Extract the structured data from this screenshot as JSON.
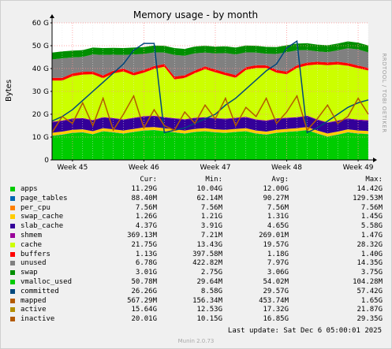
{
  "chart_data": {
    "type": "area",
    "title": "Memory usage - by month",
    "ylabel": "Bytes",
    "xlabel": "",
    "side_label": "RRDTOOL / TOBI OETIKER",
    "ylim": [
      0,
      60
    ],
    "y_ticks": [
      "0",
      "10 G",
      "20 G",
      "30 G",
      "40 G",
      "50 G",
      "60 G"
    ],
    "y_tick_values": [
      0,
      10,
      20,
      30,
      40,
      50,
      60
    ],
    "x_range": [
      0,
      31
    ],
    "x_ticks": [
      {
        "label": "Week 45",
        "x": 2
      },
      {
        "label": "Week 46",
        "x": 9
      },
      {
        "label": "Week 47",
        "x": 16
      },
      {
        "label": "Week 48",
        "x": 23
      },
      {
        "label": "Week 49",
        "x": 30
      }
    ],
    "grid": true,
    "x": [
      0,
      1,
      2,
      3,
      4,
      5,
      6,
      7,
      8,
      9,
      10,
      11,
      12,
      13,
      14,
      15,
      16,
      17,
      18,
      19,
      20,
      21,
      22,
      23,
      24,
      25,
      26,
      27,
      28,
      29,
      30,
      31
    ],
    "stack_series": [
      {
        "name": "apps",
        "color": "#00cc00",
        "values": [
          10.5,
          11.0,
          11.8,
          12.0,
          11.2,
          12.5,
          12.0,
          11.5,
          12.2,
          12.8,
          13.0,
          12.5,
          12.0,
          11.5,
          12.2,
          12.5,
          12.0,
          11.8,
          12.2,
          12.5,
          11.5,
          11.0,
          11.8,
          12.2,
          12.5,
          13.0,
          11.5,
          10.2,
          11.0,
          12.0,
          11.5,
          11.3
        ]
      },
      {
        "name": "page_tables",
        "color": "#0066b3",
        "values": [
          0.09,
          0.09,
          0.09,
          0.09,
          0.09,
          0.09,
          0.09,
          0.09,
          0.09,
          0.09,
          0.09,
          0.09,
          0.09,
          0.09,
          0.09,
          0.09,
          0.09,
          0.09,
          0.09,
          0.09,
          0.09,
          0.09,
          0.09,
          0.09,
          0.09,
          0.09,
          0.09,
          0.09,
          0.09,
          0.09,
          0.09,
          0.09
        ]
      },
      {
        "name": "per_cpu",
        "color": "#ff8000",
        "values": [
          0.01,
          0.01,
          0.01,
          0.01,
          0.01,
          0.01,
          0.01,
          0.01,
          0.01,
          0.01,
          0.01,
          0.01,
          0.01,
          0.01,
          0.01,
          0.01,
          0.01,
          0.01,
          0.01,
          0.01,
          0.01,
          0.01,
          0.01,
          0.01,
          0.01,
          0.01,
          0.01,
          0.01,
          0.01,
          0.01,
          0.01,
          0.01
        ]
      },
      {
        "name": "swap_cache",
        "color": "#ffcc00",
        "values": [
          1.3,
          1.3,
          1.3,
          1.3,
          1.3,
          1.3,
          1.3,
          1.3,
          1.3,
          1.3,
          1.3,
          1.3,
          1.3,
          1.3,
          1.3,
          1.3,
          1.3,
          1.3,
          1.3,
          1.3,
          1.3,
          1.3,
          1.3,
          1.3,
          1.3,
          1.3,
          1.3,
          1.3,
          1.3,
          1.3,
          1.3,
          1.26
        ]
      },
      {
        "name": "slab_cache",
        "color": "#330099",
        "values": [
          4.6,
          4.6,
          4.7,
          4.7,
          4.6,
          4.6,
          4.7,
          4.6,
          4.6,
          4.7,
          4.7,
          4.6,
          4.6,
          4.7,
          4.6,
          4.6,
          4.7,
          4.6,
          4.6,
          4.7,
          4.6,
          4.6,
          4.7,
          4.6,
          4.6,
          4.7,
          4.6,
          4.6,
          4.6,
          4.5,
          4.4,
          4.37
        ]
      },
      {
        "name": "shmem",
        "color": "#990099",
        "values": [
          0.27,
          0.27,
          0.27,
          0.27,
          0.27,
          0.27,
          0.27,
          0.27,
          0.27,
          0.27,
          0.27,
          0.27,
          0.27,
          0.27,
          0.27,
          0.27,
          0.27,
          0.27,
          0.27,
          0.27,
          0.27,
          0.27,
          0.27,
          0.27,
          0.27,
          0.27,
          0.27,
          0.27,
          0.27,
          0.3,
          0.35,
          0.37
        ]
      },
      {
        "name": "cache",
        "color": "#ccff00",
        "values": [
          18.0,
          17.5,
          18.5,
          19.0,
          20.0,
          17.0,
          19.5,
          21.0,
          18.5,
          19.0,
          20.5,
          22.0,
          17.0,
          18.0,
          19.5,
          21.0,
          20.0,
          19.0,
          17.5,
          20.5,
          22.5,
          23.0,
          20.0,
          19.0,
          21.5,
          22.0,
          24.0,
          25.0,
          24.5,
          23.0,
          22.5,
          21.75
        ]
      },
      {
        "name": "buffers",
        "color": "#ff0000",
        "values": [
          1.2,
          1.2,
          1.2,
          1.2,
          1.2,
          1.2,
          1.2,
          1.2,
          1.2,
          1.2,
          1.2,
          1.2,
          1.2,
          1.2,
          1.2,
          1.2,
          1.2,
          1.2,
          1.2,
          1.2,
          1.2,
          1.2,
          1.2,
          1.2,
          1.2,
          1.2,
          1.2,
          1.2,
          1.2,
          1.2,
          1.2,
          1.13
        ]
      },
      {
        "name": "unused",
        "color": "#808080",
        "values": [
          8.0,
          8.5,
          7.0,
          6.5,
          7.5,
          9.0,
          7.0,
          6.0,
          8.0,
          7.0,
          6.0,
          5.0,
          9.5,
          8.5,
          7.5,
          6.0,
          7.0,
          8.5,
          9.0,
          6.5,
          5.5,
          5.0,
          7.0,
          8.5,
          6.5,
          5.5,
          4.5,
          4.5,
          5.0,
          6.5,
          7.0,
          6.78
        ]
      },
      {
        "name": "swap",
        "color": "#008f00",
        "values": [
          3.0,
          3.0,
          3.0,
          3.0,
          3.0,
          3.0,
          3.0,
          3.0,
          3.0,
          3.0,
          3.0,
          3.0,
          3.0,
          3.0,
          3.0,
          3.0,
          3.0,
          3.0,
          3.0,
          3.0,
          3.0,
          3.0,
          3.0,
          3.0,
          3.0,
          3.0,
          3.0,
          3.0,
          3.0,
          3.0,
          3.0,
          3.01
        ]
      }
    ],
    "line_series": [
      {
        "name": "committed",
        "color": "#00487d",
        "values": [
          17.0,
          19.0,
          22.0,
          26.0,
          30.0,
          34.0,
          38.0,
          42.0,
          48.0,
          51.0,
          51.0,
          12.0,
          13.0,
          14.0,
          16.0,
          18.0,
          20.0,
          24.0,
          27.0,
          31.0,
          35.0,
          39.0,
          42.0,
          49.0,
          52.0,
          12.0,
          14.0,
          17.0,
          20.0,
          23.0,
          25.0,
          26.26
        ]
      },
      {
        "name": "inactive",
        "color": "#b35a00",
        "values": [
          12.0,
          19.0,
          16.0,
          25.0,
          15.0,
          27.0,
          13.0,
          20.0,
          28.0,
          14.0,
          22.0,
          15.0,
          13.0,
          21.0,
          16.0,
          24.0,
          18.0,
          27.0,
          15.0,
          23.0,
          19.0,
          27.0,
          16.0,
          21.0,
          28.0,
          13.0,
          18.0,
          24.0,
          16.0,
          19.0,
          27.0,
          20.01
        ]
      }
    ],
    "legend": {
      "headers": [
        "Cur:",
        "Min:",
        "Avg:",
        "Max:"
      ],
      "rows": [
        {
          "name": "apps",
          "color": "#00cc00",
          "cur": "11.29G",
          "min": "10.04G",
          "avg": "12.00G",
          "max": "14.42G"
        },
        {
          "name": "page_tables",
          "color": "#0066b3",
          "cur": "88.40M",
          "min": "62.14M",
          "avg": "90.27M",
          "max": "129.53M"
        },
        {
          "name": "per_cpu",
          "color": "#ff8000",
          "cur": "7.56M",
          "min": "7.56M",
          "avg": "7.56M",
          "max": "7.56M"
        },
        {
          "name": "swap_cache",
          "color": "#ffcc00",
          "cur": "1.26G",
          "min": "1.21G",
          "avg": "1.31G",
          "max": "1.45G"
        },
        {
          "name": "slab_cache",
          "color": "#330099",
          "cur": "4.37G",
          "min": "3.91G",
          "avg": "4.65G",
          "max": "5.58G"
        },
        {
          "name": "shmem",
          "color": "#990099",
          "cur": "369.13M",
          "min": "7.21M",
          "avg": "269.01M",
          "max": "1.47G"
        },
        {
          "name": "cache",
          "color": "#ccff00",
          "cur": "21.75G",
          "min": "13.43G",
          "avg": "19.57G",
          "max": "28.32G"
        },
        {
          "name": "buffers",
          "color": "#ff0000",
          "cur": "1.13G",
          "min": "397.58M",
          "avg": "1.18G",
          "max": "1.40G"
        },
        {
          "name": "unused",
          "color": "#808080",
          "cur": "6.78G",
          "min": "422.82M",
          "avg": "7.97G",
          "max": "14.35G"
        },
        {
          "name": "swap",
          "color": "#008f00",
          "cur": "3.01G",
          "min": "2.75G",
          "avg": "3.06G",
          "max": "3.75G"
        },
        {
          "name": "vmalloc_used",
          "color": "#00cc00",
          "cur": "50.78M",
          "min": "29.64M",
          "avg": "54.02M",
          "max": "104.28M"
        },
        {
          "name": "committed",
          "color": "#00487d",
          "cur": "26.26G",
          "min": "8.58G",
          "avg": "29.57G",
          "max": "57.42G"
        },
        {
          "name": "mapped",
          "color": "#b35a00",
          "cur": "567.29M",
          "min": "156.34M",
          "avg": "453.74M",
          "max": "1.65G"
        },
        {
          "name": "active",
          "color": "#b38f00",
          "cur": "15.64G",
          "min": "12.53G",
          "avg": "17.32G",
          "max": "21.87G"
        },
        {
          "name": "inactive",
          "color": "#b35a00",
          "cur": "20.01G",
          "min": "10.15G",
          "avg": "16.85G",
          "max": "29.35G"
        }
      ]
    }
  },
  "footer": {
    "last_update": "Last update: Sat Dec  6 05:00:01 2025",
    "munin_version": "Munin 2.0.73"
  }
}
